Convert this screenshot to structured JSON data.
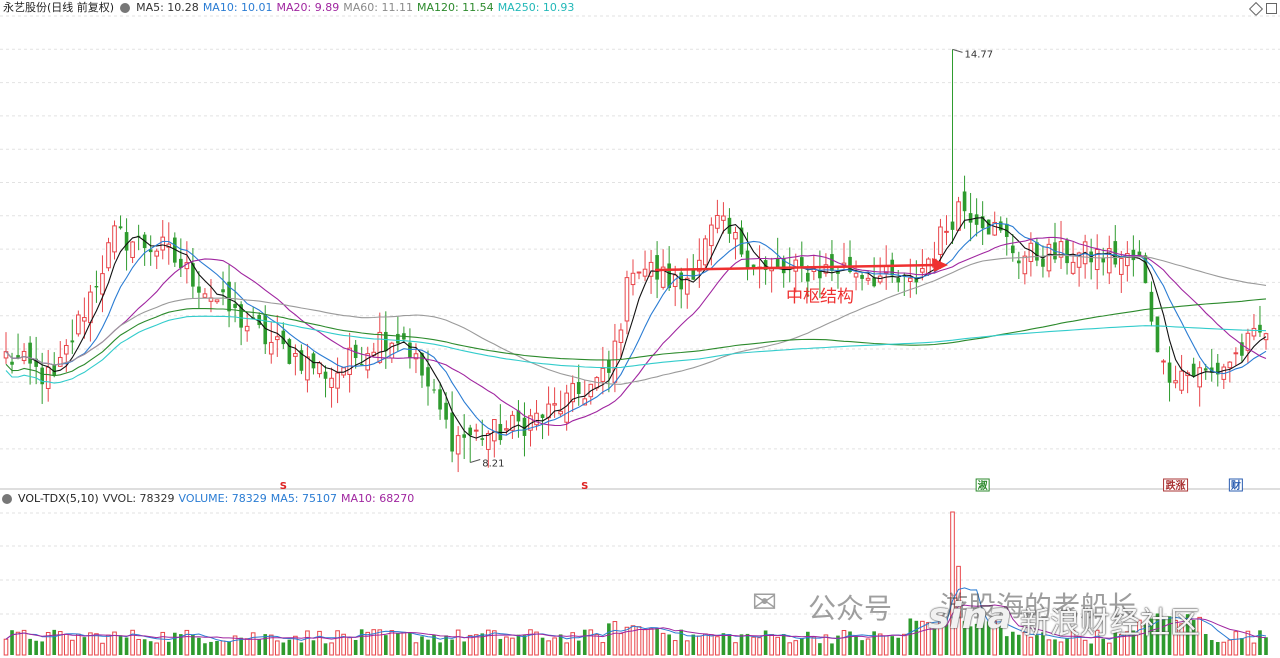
{
  "header_main": {
    "title": "永艺股份(日线 前复权)",
    "ma5": "MA5: 10.28",
    "ma10": "MA10: 10.01",
    "ma20": "MA20: 9.89",
    "ma60": "MA60: 11.11",
    "ma120": "MA120: 11.54",
    "ma250": "MA250: 10.93"
  },
  "header_vol": {
    "title": "VOL-TDX(5,10)",
    "vvol": "VVOL: 78329",
    "volume": "VOLUME: 78329",
    "ma5": "MA5: 75107",
    "ma10": "MA10: 68270"
  },
  "colors": {
    "up": "#e8454a",
    "down": "#2e9b2e",
    "ma5": "#111111",
    "ma10": "#2a7cd3",
    "ma20": "#a026a0",
    "ma60": "#9a9a9a",
    "ma120": "#2c8a2c",
    "ma250": "#33cccc",
    "grid": "#e2e2e2",
    "arrow": "#ef3030"
  },
  "chart_data": {
    "type": "candlestick",
    "bars": 210,
    "annotations": {
      "high_label": "14.77",
      "low_label": "8.21",
      "zone_label": "中枢结构"
    },
    "anchor_prices": [
      {
        "bar": 0,
        "price": 9.9
      },
      {
        "bar": 8,
        "price": 9.5
      },
      {
        "bar": 18,
        "price": 11.8
      },
      {
        "bar": 26,
        "price": 11.6
      },
      {
        "bar": 36,
        "price": 10.7
      },
      {
        "bar": 44,
        "price": 10.1
      },
      {
        "bar": 54,
        "price": 9.6
      },
      {
        "bar": 62,
        "price": 10.2
      },
      {
        "bar": 66,
        "price": 10.2
      },
      {
        "bar": 74,
        "price": 8.6
      },
      {
        "bar": 82,
        "price": 8.7
      },
      {
        "bar": 90,
        "price": 9.0
      },
      {
        "bar": 100,
        "price": 9.6
      },
      {
        "bar": 104,
        "price": 11.4
      },
      {
        "bar": 112,
        "price": 11.0
      },
      {
        "bar": 118,
        "price": 12.0
      },
      {
        "bar": 126,
        "price": 11.2
      },
      {
        "bar": 140,
        "price": 11.3
      },
      {
        "bar": 150,
        "price": 11.0
      },
      {
        "bar": 154,
        "price": 11.6
      },
      {
        "bar": 158,
        "price": 12.3
      },
      {
        "bar": 162,
        "price": 12.1
      },
      {
        "bar": 168,
        "price": 11.5
      },
      {
        "bar": 180,
        "price": 11.5
      },
      {
        "bar": 188,
        "price": 11.4
      },
      {
        "bar": 192,
        "price": 9.7
      },
      {
        "bar": 200,
        "price": 9.6
      },
      {
        "bar": 209,
        "price": 10.3
      }
    ],
    "spike_high": {
      "bar": 157,
      "price": 14.77
    },
    "spike_low": {
      "bar": 77,
      "price": 8.21
    },
    "marker_tags": [
      {
        "bar": 46,
        "text": "S"
      },
      {
        "bar": 96,
        "text": "S"
      },
      {
        "bar": 162,
        "text": "淑"
      },
      {
        "bar": 194,
        "text": "跌涨"
      },
      {
        "bar": 204,
        "text": "财"
      }
    ],
    "volume_spike_bar": 157,
    "watermark": [
      "公众号",
      "游股海的老船长",
      "新浪财经社区"
    ]
  }
}
